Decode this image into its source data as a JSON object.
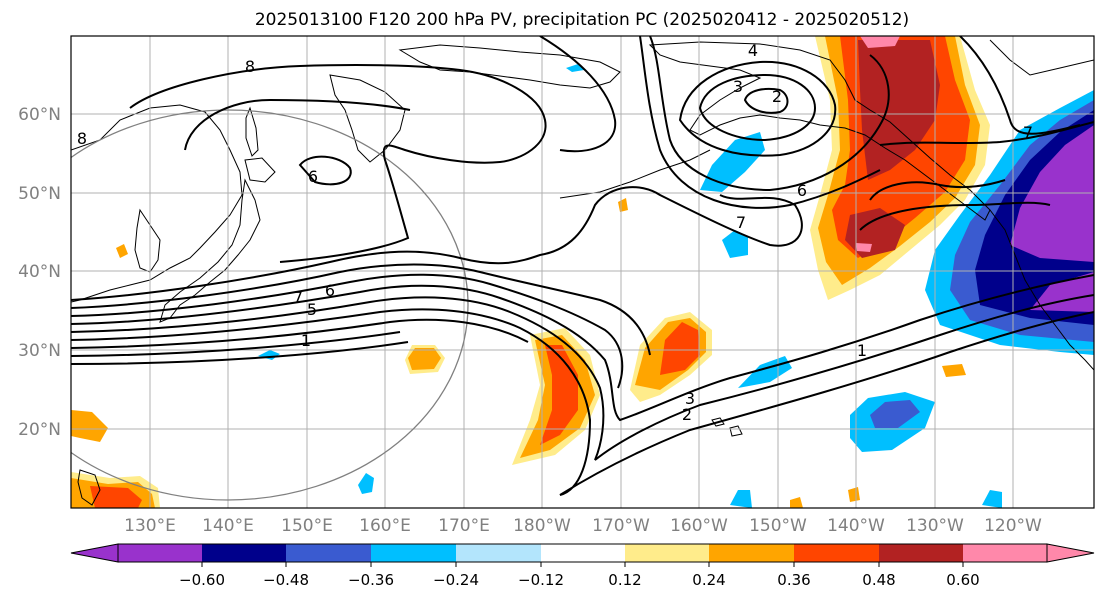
{
  "title": "2025013100 F120 200 hPa PV, precipitation PC (2025020412 - 2025020512)",
  "map": {
    "lat_labels": [
      "60°N",
      "50°N",
      "40°N",
      "30°N",
      "20°N"
    ],
    "lon_labels": [
      "130°E",
      "140°E",
      "150°E",
      "160°E",
      "170°E",
      "180°W",
      "170°W",
      "160°W",
      "150°W",
      "140°W",
      "130°W",
      "120°W"
    ],
    "contour_labels": [
      "8",
      "6",
      "4",
      "3",
      "2",
      "6",
      "7",
      "7",
      "6",
      "5",
      "1",
      "1",
      "2",
      "3",
      "8",
      "7"
    ],
    "tick_label_color": "#808080"
  },
  "colorbar": {
    "tick_labels": [
      "−0.60",
      "−0.48",
      "−0.36",
      "−0.24",
      "−0.12",
      "0.12",
      "0.24",
      "0.36",
      "0.48",
      "0.60"
    ],
    "colors": [
      "#9932cc",
      "#00008b",
      "#3a5bd0",
      "#00bfff",
      "#b3e5fc",
      "#ffffff",
      "#ffec8b",
      "#ffa500",
      "#ff4500",
      "#b22222",
      "#ff88aa"
    ]
  }
}
